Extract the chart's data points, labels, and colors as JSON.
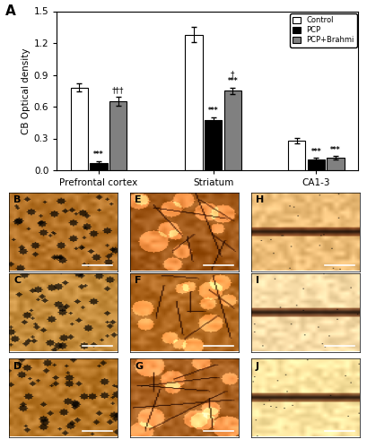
{
  "title": "A",
  "ylabel": "CB Optical density",
  "groups": [
    "Prefrontal cortex",
    "Striatum",
    "CA1-3"
  ],
  "series_labels": [
    "Control",
    "PCP",
    "PCP+Brahmi"
  ],
  "bar_colors": [
    "#ffffff",
    "#000000",
    "#808080"
  ],
  "bar_edgecolors": [
    "#000000",
    "#000000",
    "#000000"
  ],
  "values": [
    [
      0.78,
      0.07,
      0.65
    ],
    [
      1.28,
      0.47,
      0.75
    ],
    [
      0.28,
      0.1,
      0.12
    ]
  ],
  "errors": [
    [
      0.04,
      0.015,
      0.045
    ],
    [
      0.07,
      0.03,
      0.03
    ],
    [
      0.025,
      0.015,
      0.015
    ]
  ],
  "ylim": [
    0,
    1.5
  ],
  "yticks": [
    0,
    0.3,
    0.6,
    0.9,
    1.2,
    1.5
  ],
  "img_bg_colors": [
    [
      "#b8762a",
      "#a05818",
      "#c8a060"
    ],
    [
      "#c89040",
      "#b06820",
      "#d4c090"
    ],
    [
      "#b87828",
      "#a86020",
      "#d8c888"
    ]
  ],
  "img_labels": [
    [
      "B",
      "E",
      "H"
    ],
    [
      "C",
      "F",
      "I"
    ],
    [
      "D",
      "G",
      "J"
    ]
  ]
}
